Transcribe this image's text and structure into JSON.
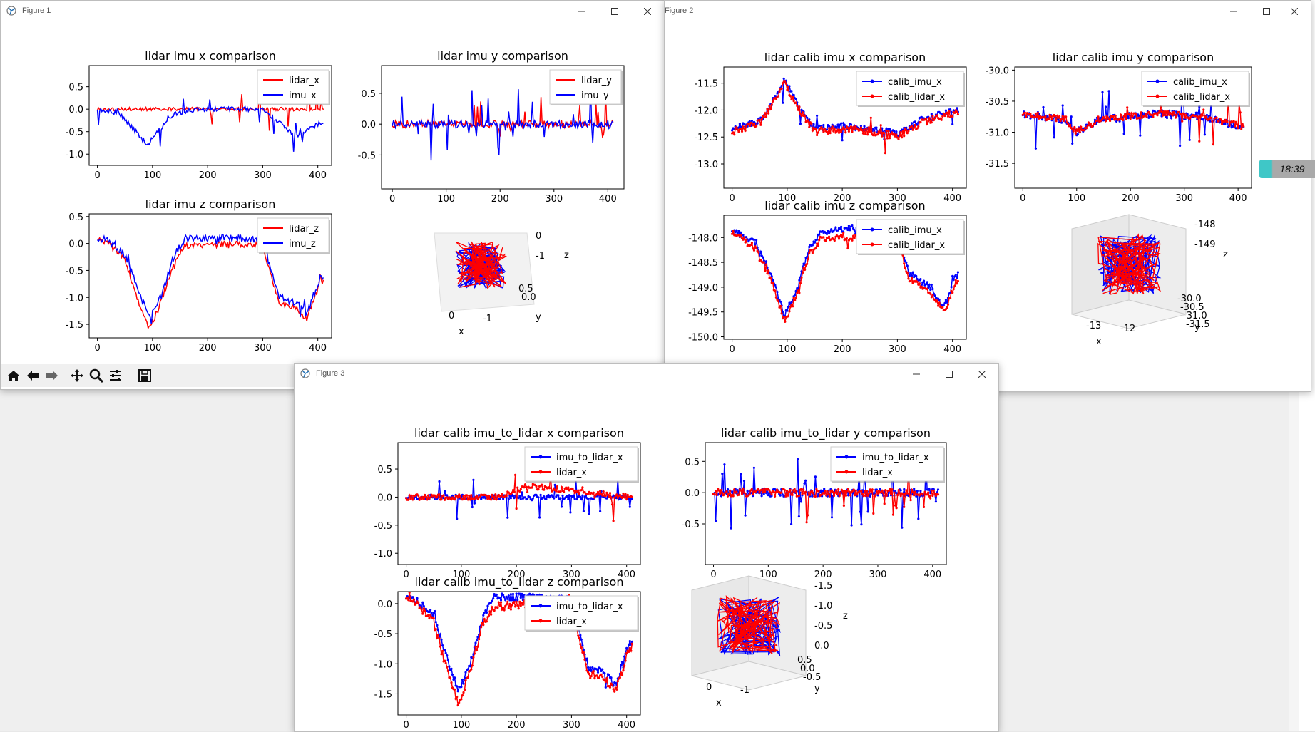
{
  "windows": {
    "fig1": {
      "title": "Figure 1"
    },
    "fig2": {
      "title": "Figure 2"
    },
    "fig3": {
      "title": "Figure 3"
    }
  },
  "clock": {
    "time": "18:39"
  },
  "toolbar_icons": [
    "home-icon",
    "back-icon",
    "forward-icon",
    "pan-icon",
    "zoom-icon",
    "configure-icon",
    "save-icon"
  ],
  "colors": {
    "red": "#ff0000",
    "blue": "#0000ff"
  },
  "chart_data": [
    {
      "id": "f1_x",
      "type": "line",
      "title": "lidar imu x comparison",
      "xlim": [
        -15,
        425
      ],
      "ylim": [
        -1.25,
        0.97
      ],
      "yticks": [
        0.5,
        0.0,
        -0.5,
        -1.0
      ],
      "xticks": [
        0,
        100,
        200,
        300,
        400
      ],
      "series": [
        {
          "name": "lidar_x",
          "color": "red",
          "markers": false
        },
        {
          "name": "imu_x",
          "color": "blue",
          "markers": false
        }
      ],
      "legend": "upper right"
    },
    {
      "id": "f1_y",
      "type": "line",
      "title": "lidar imu y comparison",
      "xlim": [
        -20,
        430
      ],
      "ylim": [
        -1.05,
        0.95
      ],
      "yticks": [
        0.5,
        0.0,
        -0.5
      ],
      "xticks": [
        0,
        100,
        200,
        300,
        400
      ],
      "series": [
        {
          "name": "lidar_y",
          "color": "red",
          "markers": false
        },
        {
          "name": "imu_y",
          "color": "blue",
          "markers": false
        }
      ],
      "legend": "upper right"
    },
    {
      "id": "f1_z",
      "type": "line",
      "title": "lidar imu z comparison",
      "xlim": [
        -15,
        425
      ],
      "ylim": [
        -1.75,
        0.55
      ],
      "yticks": [
        0.5,
        0.0,
        -0.5,
        -1.0,
        -1.5
      ],
      "xticks": [
        0,
        100,
        200,
        300,
        400
      ],
      "series": [
        {
          "name": "lidar_z",
          "color": "red",
          "markers": false
        },
        {
          "name": "imu_z",
          "color": "blue",
          "markers": false
        }
      ],
      "legend": "upper right"
    },
    {
      "id": "f2_x",
      "type": "line",
      "title": "lidar calib imu x comparison",
      "xlim": [
        -15,
        425
      ],
      "ylim": [
        -13.45,
        -11.2
      ],
      "yticks": [
        -11.5,
        -12.0,
        -12.5,
        -13.0
      ],
      "xticks": [
        0,
        100,
        200,
        300,
        400
      ],
      "series": [
        {
          "name": "calib_imu_x",
          "color": "blue",
          "markers": true
        },
        {
          "name": "calib_lidar_x",
          "color": "red",
          "markers": true
        }
      ],
      "legend": "upper right"
    },
    {
      "id": "f2_y",
      "type": "line",
      "title": "lidar calib imu y comparison",
      "xlim": [
        -15,
        425
      ],
      "ylim": [
        -31.9,
        -29.95
      ],
      "yticks": [
        -30.0,
        -30.5,
        -31.0,
        -31.5
      ],
      "xticks": [
        0,
        100,
        200,
        300,
        400
      ],
      "series": [
        {
          "name": "calib_imu_x",
          "color": "blue",
          "markers": true
        },
        {
          "name": "calib_lidar_x",
          "color": "red",
          "markers": true
        }
      ],
      "legend": "upper right"
    },
    {
      "id": "f2_z",
      "type": "line",
      "title": "lidar calib imu z comparison",
      "xlim": [
        -15,
        425
      ],
      "ylim": [
        -150.05,
        -147.55
      ],
      "yticks": [
        -148.0,
        -148.5,
        -149.0,
        -149.5,
        -150.0
      ],
      "xticks": [
        0,
        100,
        200,
        300,
        400
      ],
      "series": [
        {
          "name": "calib_imu_x",
          "color": "blue",
          "markers": true
        },
        {
          "name": "calib_lidar_x",
          "color": "red",
          "markers": true
        }
      ],
      "legend": "upper right"
    },
    {
      "id": "f3_x",
      "type": "line",
      "title": "lidar calib imu_to_lidar x comparison",
      "xlim": [
        -15,
        425
      ],
      "ylim": [
        -1.2,
        0.97
      ],
      "yticks": [
        0.5,
        0.0,
        -0.5,
        -1.0
      ],
      "xticks": [
        0,
        100,
        200,
        300,
        400
      ],
      "series": [
        {
          "name": "imu_to_lidar_x",
          "color": "blue",
          "markers": true
        },
        {
          "name": "lidar_x",
          "color": "red",
          "markers": true
        }
      ],
      "legend": "upper right"
    },
    {
      "id": "f3_y",
      "type": "line",
      "title": "lidar calib imu_to_lidar y comparison",
      "xlim": [
        -15,
        425
      ],
      "ylim": [
        -1.15,
        0.8
      ],
      "yticks": [
        0.5,
        0.0,
        -0.5
      ],
      "xticks": [
        0,
        100,
        200,
        300,
        400
      ],
      "series": [
        {
          "name": "imu_to_lidar_x",
          "color": "blue",
          "markers": true
        },
        {
          "name": "lidar_x",
          "color": "red",
          "markers": true
        }
      ],
      "legend": "upper right"
    },
    {
      "id": "f3_z",
      "type": "line",
      "title": "lidar calib imu_to_lidar z comparison",
      "xlim": [
        -15,
        425
      ],
      "ylim": [
        -1.85,
        0.2
      ],
      "yticks": [
        0.0,
        -0.5,
        -1.0,
        -1.5
      ],
      "xticks": [
        0,
        100,
        200,
        300,
        400
      ],
      "series": [
        {
          "name": "imu_to_lidar_x",
          "color": "blue",
          "markers": true
        },
        {
          "name": "lidar_x",
          "color": "red",
          "markers": true
        }
      ],
      "legend": "upper right"
    }
  ],
  "plots3d": {
    "f1": {
      "z_ticks": [
        "0",
        "-1"
      ],
      "x_ticks": [
        "0",
        "-1"
      ],
      "y_ticks": [
        "0.5",
        "0.0"
      ],
      "xlabel": "x",
      "ylabel": "y",
      "zlabel": "z"
    },
    "f2": {
      "z_ticks": [
        "-148",
        "-149"
      ],
      "x_ticks": [
        "-13",
        "-12"
      ],
      "y_ticks": [
        "-30.0",
        "-30.5",
        "-31.0",
        "-31.5"
      ],
      "xlabel": "x",
      "ylabel": "y",
      "zlabel": "z"
    },
    "f3": {
      "z_ticks": [
        "-1.5",
        "-1.0",
        "-0.5",
        "0.0"
      ],
      "x_ticks": [
        "0",
        "-1"
      ],
      "y_ticks": [
        "0.5",
        "0.0",
        "-0.5"
      ],
      "xlabel": "x",
      "ylabel": "y",
      "zlabel": "z"
    }
  }
}
